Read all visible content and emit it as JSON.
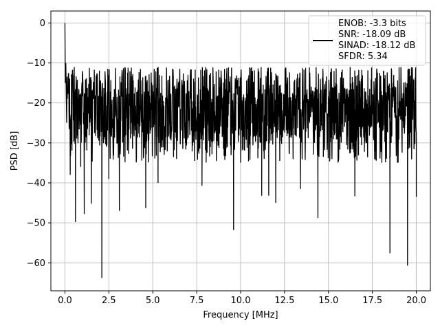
{
  "chart_data": {
    "type": "line",
    "title": "",
    "xlabel": "Frequency [MHz]",
    "ylabel": "PSD [dB]",
    "xlim": [
      -0.8,
      20.8
    ],
    "ylim": [
      -67,
      3
    ],
    "xticks": [
      0.0,
      2.5,
      5.0,
      7.5,
      10.0,
      12.5,
      15.0,
      17.5,
      20.0
    ],
    "xtick_labels": [
      "0.0",
      "2.5",
      "5.0",
      "7.5",
      "10.0",
      "12.5",
      "15.0",
      "17.5",
      "20.0"
    ],
    "yticks": [
      0,
      -10,
      -20,
      -30,
      -40,
      -50,
      -60
    ],
    "ytick_labels": [
      "0",
      "−10",
      "−20",
      "−30",
      "−40",
      "−50",
      "−60"
    ],
    "grid": true,
    "legend_position": "top-right",
    "line_color": "#000000",
    "series": [
      {
        "name": "",
        "description_points": {
          "x": [
            0.0,
            0.02,
            0.05,
            0.1,
            0.3,
            0.6,
            0.9,
            1.1,
            1.5,
            2.1,
            2.5,
            3.1,
            4.6,
            5.3,
            7.8,
            9.6,
            11.2,
            11.6,
            12.0,
            13.4,
            14.4,
            16.5,
            18.5,
            19.5,
            20.0
          ],
          "y": [
            0.0,
            -15.0,
            -10.0,
            -25.0,
            -38.0,
            -49.8,
            -36.0,
            -47.8,
            -45.2,
            -63.8,
            -39.0,
            -47.0,
            -46.3,
            -40.0,
            -40.7,
            -51.8,
            -43.2,
            -43.2,
            -45.0,
            -41.5,
            -48.8,
            -43.3,
            -57.6,
            -60.7,
            -43.5
          ]
        },
        "noise_floor_db": -23,
        "noise_upper_db": -11,
        "noise_lower_db": -35,
        "num_points": 1500
      }
    ],
    "legend_entries": [
      "ENOB: -3.3 bits",
      "SNR: -18.09 dB",
      "SINAD: -18.12 dB",
      "SFDR: 5.34"
    ]
  }
}
